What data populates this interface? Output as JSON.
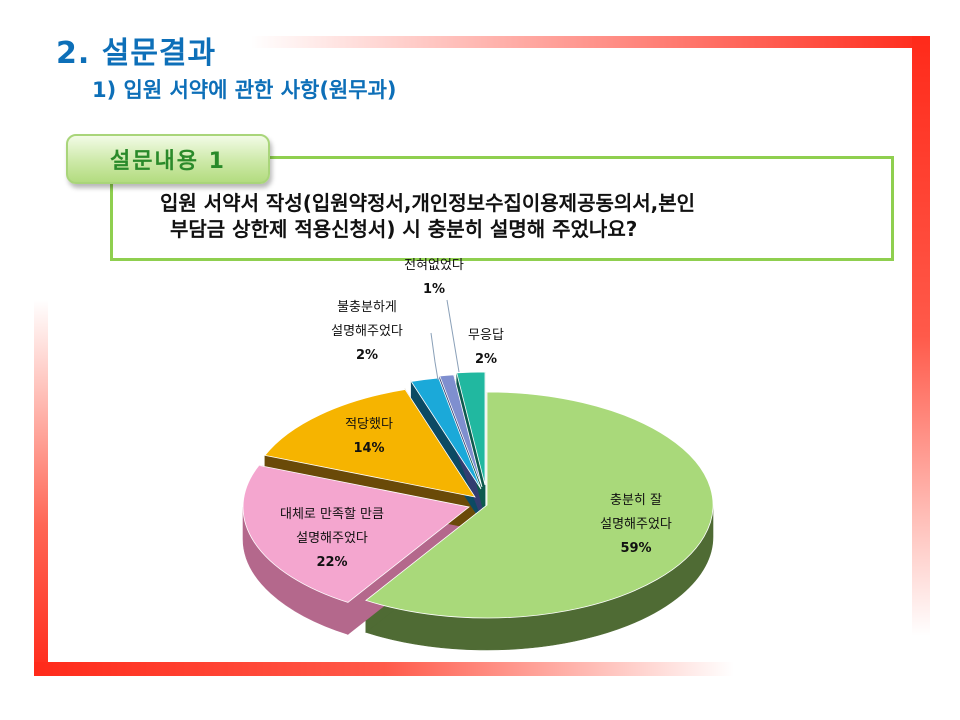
{
  "header": {
    "title": "2. 설문결과",
    "subtitle": "1) 입원 서약에 관한 사항(원무과)"
  },
  "question": {
    "tab_label": "설문내용  1",
    "line1": "입원  서약서  작성(입원약정서,개인정보수집이용제공동의서,본인",
    "line2": "부담금 상한제 적용신청서) 시 충분히 설명해 주었나요?"
  },
  "chart_data": {
    "type": "pie",
    "title": "",
    "slices": [
      {
        "label_lines": [
          "충분히 잘",
          "설명해주었다"
        ],
        "value": 59,
        "value_label": "59%",
        "color": "#a9d97a",
        "side_color": "#4f6b34"
      },
      {
        "label_lines": [
          "대체로 만족할 만큼",
          "설명해주었다"
        ],
        "value": 22,
        "value_label": "22%",
        "color": "#f4a6cf",
        "side_color": "#b4688c"
      },
      {
        "label_lines": [
          "적당했다"
        ],
        "value": 14,
        "value_label": "14%",
        "color": "#f6b400",
        "side_color": "#6a4a08"
      },
      {
        "label_lines": [
          "불충분하게",
          "설명해주었다"
        ],
        "value": 2,
        "value_label": "2%",
        "color": "#1ba9d9",
        "side_color": "#0c4a63"
      },
      {
        "label_lines": [
          "전혀없었다"
        ],
        "value": 1,
        "value_label": "1%",
        "color": "#7f8fcf",
        "side_color": "#333d70"
      },
      {
        "label_lines": [
          "무응답"
        ],
        "value": 2,
        "value_label": "2%",
        "color": "#21b8a0",
        "side_color": "#0d5a4e"
      }
    ]
  }
}
